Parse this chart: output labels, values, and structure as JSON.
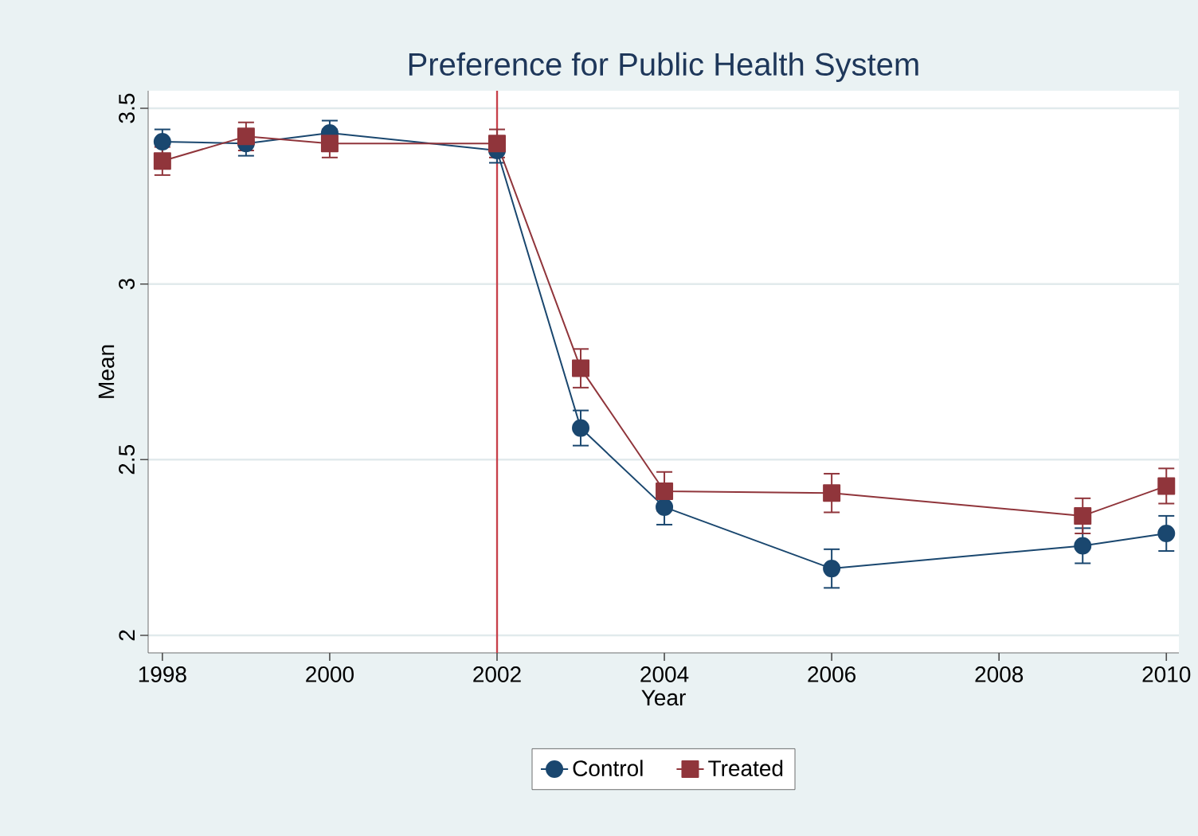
{
  "chart_data": {
    "type": "line",
    "title": "Preference for Public Health System",
    "xlabel": "Year",
    "ylabel": "Mean",
    "x": [
      1998,
      1999,
      2000,
      2002,
      2003,
      2004,
      2006,
      2009,
      2010
    ],
    "series": [
      {
        "name": "Control",
        "color": "#1a476f",
        "marker": "circle",
        "values": [
          3.405,
          3.4,
          3.43,
          3.38,
          2.59,
          2.365,
          2.19,
          2.255,
          2.29
        ],
        "errors": [
          0.035,
          0.035,
          0.035,
          0.035,
          0.05,
          0.05,
          0.055,
          0.05,
          0.05
        ]
      },
      {
        "name": "Treated",
        "color": "#90353b",
        "marker": "square",
        "values": [
          3.35,
          3.42,
          3.4,
          3.4,
          2.76,
          2.41,
          2.405,
          2.34,
          2.425
        ],
        "errors": [
          0.04,
          0.04,
          0.04,
          0.04,
          0.055,
          0.055,
          0.055,
          0.05,
          0.05
        ]
      }
    ],
    "xlim": [
      1997.83,
      2010.15
    ],
    "ylim": [
      1.95,
      3.55
    ],
    "xticks": [
      1998,
      2000,
      2002,
      2004,
      2006,
      2008,
      2010
    ],
    "yticks": [
      2,
      2.5,
      3,
      3.5
    ],
    "grid": "y",
    "legend": "bottom",
    "ref_lines": [
      {
        "axis": "x",
        "value": 2002,
        "color": "#c8404a"
      }
    ]
  }
}
